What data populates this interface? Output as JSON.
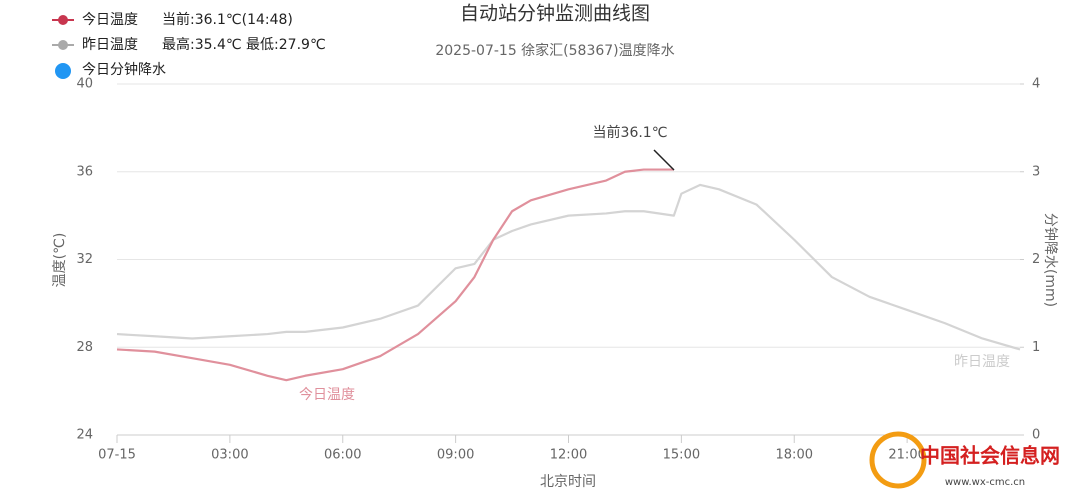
{
  "chart_data": {
    "type": "line",
    "title": "自动站分钟监测曲线图",
    "subtitle": "2025-07-15 徐家汇(58367)温度降水",
    "x_label": "北京时间",
    "y_label": "温度(℃)",
    "y2_label": "分钟降水(mm)",
    "x": [
      0,
      1,
      2,
      3,
      4,
      4.5,
      5,
      6,
      7,
      8,
      9,
      9.5,
      10,
      10.5,
      11,
      12,
      13,
      13.5,
      14,
      14.8,
      15,
      15.5,
      16,
      17,
      18,
      19,
      20,
      21,
      22,
      23,
      24
    ],
    "series": [
      {
        "name": "今日温度",
        "note": "当前:36.1℃(14:48)",
        "color": "#e0909c",
        "marker_color": "#c8364f",
        "values": [
          27.9,
          27.8,
          27.5,
          27.2,
          26.7,
          26.5,
          26.7,
          27.0,
          27.6,
          28.6,
          30.1,
          31.2,
          32.9,
          34.2,
          34.7,
          35.2,
          35.6,
          36.0,
          36.1,
          36.1,
          null,
          null,
          null,
          null,
          null,
          null,
          null,
          null,
          null,
          null,
          null
        ]
      },
      {
        "name": "昨日温度",
        "note": "最高:35.4℃ 最低:27.9℃",
        "color": "#d4d4d4",
        "marker_color": "#aaaaaa",
        "values": [
          28.6,
          28.5,
          28.4,
          28.5,
          28.6,
          28.7,
          28.7,
          28.9,
          29.3,
          29.9,
          31.6,
          31.8,
          32.9,
          33.3,
          33.6,
          34.0,
          34.1,
          34.2,
          34.2,
          34.0,
          35.0,
          35.4,
          35.2,
          34.5,
          32.9,
          31.2,
          30.3,
          29.7,
          29.1,
          28.4,
          27.9
        ]
      },
      {
        "name": "今日分钟降水",
        "color": "#2196f3",
        "axis": "y2",
        "values": [
          null,
          null,
          null,
          null,
          null,
          null,
          null,
          null,
          null,
          null,
          null,
          null,
          null,
          null,
          null,
          null,
          null,
          null,
          null,
          null,
          null,
          null,
          null,
          null,
          null,
          null,
          null,
          null,
          null,
          null,
          null
        ]
      }
    ],
    "annotations": [
      "当前36.1℃",
      "今日温度",
      "昨日温度"
    ],
    "xlim": [
      0,
      24
    ],
    "xticks": [
      {
        "value": 0,
        "label": "07-15"
      },
      {
        "value": 3,
        "label": "03:00"
      },
      {
        "value": 6,
        "label": "06:00"
      },
      {
        "value": 9,
        "label": "09:00"
      },
      {
        "value": 12,
        "label": "12:00"
      },
      {
        "value": 15,
        "label": "15:00"
      },
      {
        "value": 18,
        "label": "18:00"
      },
      {
        "value": 21,
        "label": "21:00"
      }
    ],
    "ylim": [
      24,
      40
    ],
    "yticks": [
      24,
      28,
      32,
      36,
      40
    ],
    "y2lim": [
      0,
      4
    ],
    "y2ticks": [
      0,
      1,
      2,
      3,
      4
    ],
    "grid": true
  },
  "watermark": {
    "name": "中国社会信息网",
    "url": "www.wx-cmc.cn"
  }
}
